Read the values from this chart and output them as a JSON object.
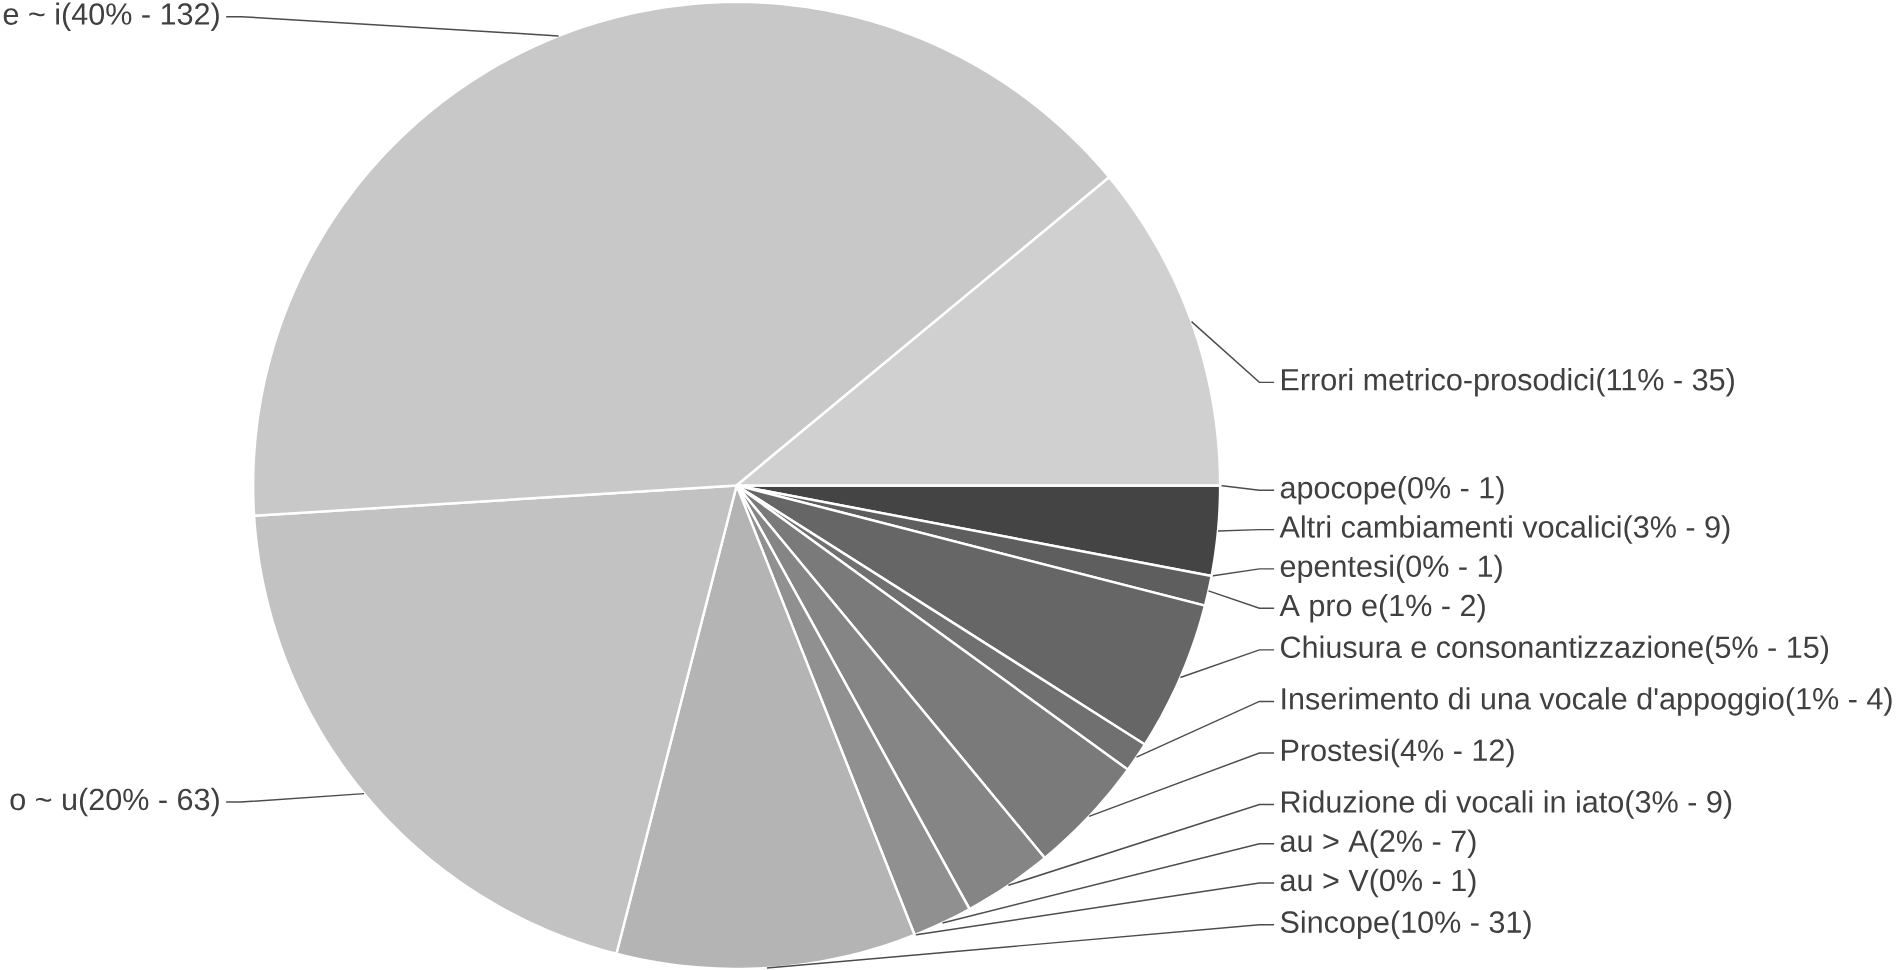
{
  "chart_data": {
    "type": "pie",
    "categories": [
      "apocope",
      "Altri cambiamenti vocalici",
      "epentesi",
      "A pro e",
      "Chiusura e consonantizzazione",
      "Inserimento di una vocale d'appoggio",
      "Prostesi",
      "Riduzione di vocali in iato",
      "au > A",
      "au > V",
      "Sincope",
      "o ~ u",
      "e ~ i",
      "Errori metrico-prosodici"
    ],
    "values": [
      0,
      3,
      0,
      1,
      5,
      1,
      4,
      3,
      2,
      0,
      10,
      20,
      40,
      11
    ],
    "value_labels": [
      "(0% - 1)",
      "(3% - 9)",
      "(0% - 1)",
      "(1% - 2)",
      "(5% - 15)",
      "(1% - 4)",
      "(4% - 12)",
      "(3% - 9)",
      "(2% - 7)",
      "(0% - 1)",
      "(10% - 31)",
      "(20% - 63)",
      "(40% - 132)",
      "(11% - 35)"
    ],
    "colors": [
      "#333333",
      "#444444",
      "#555555",
      "#5e5e5e",
      "#666666",
      "#707070",
      "#7a7a7a",
      "#858585",
      "#909090",
      "#9a9a9a",
      "#b4b4b4",
      "#c2c2c2",
      "#c8c8c8",
      "#d0d0d0"
    ]
  }
}
